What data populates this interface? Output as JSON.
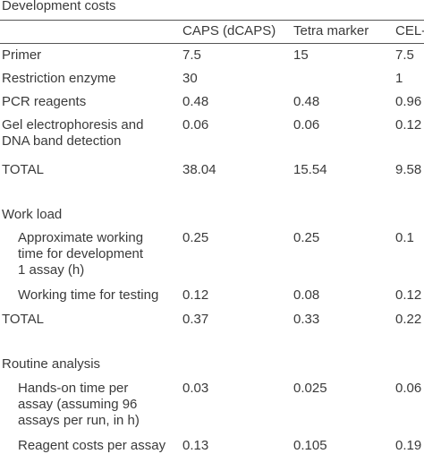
{
  "columns": [
    "CAPS (dCAPS)",
    "Tetra marker",
    "CEL-I"
  ],
  "sections": [
    {
      "title": "Development costs",
      "rows": [
        {
          "label": [
            "Primer"
          ],
          "values": [
            "7.5",
            "15",
            "7.5"
          ]
        },
        {
          "label": [
            "Restriction enzyme"
          ],
          "values": [
            "30",
            null,
            "1"
          ]
        },
        {
          "label": [
            "PCR reagents"
          ],
          "values": [
            "0.48",
            "0.48",
            "0.96"
          ]
        },
        {
          "label": [
            "Gel electrophoresis and",
            "DNA band detection"
          ],
          "values": [
            "0.06",
            "0.06",
            "0.12"
          ]
        },
        {
          "label": [
            "TOTAL"
          ],
          "values": [
            "38.04",
            "15.54",
            "9.58"
          ]
        }
      ]
    },
    {
      "title": "Work load",
      "rows": [
        {
          "label": [
            "Approximate working",
            "time for development",
            "1 assay (h)"
          ],
          "values": [
            "0.25",
            "0.25",
            "0.1"
          ]
        },
        {
          "label": [
            "Working time for testing"
          ],
          "values": [
            "0.12",
            "0.08",
            "0.12"
          ]
        },
        {
          "label": [
            "TOTAL"
          ],
          "values": [
            "0.37",
            "0.33",
            "0.22"
          ]
        }
      ]
    },
    {
      "title": "Routine analysis",
      "rows": [
        {
          "label": [
            "Hands-on time per",
            "assay (assuming 96",
            "assays per run, in h)"
          ],
          "values": [
            "0.03",
            "0.025",
            "0.06"
          ]
        },
        {
          "label": [
            "Reagent costs per assay"
          ],
          "values": [
            "0.13",
            "0.105",
            "0.19"
          ]
        }
      ]
    }
  ]
}
